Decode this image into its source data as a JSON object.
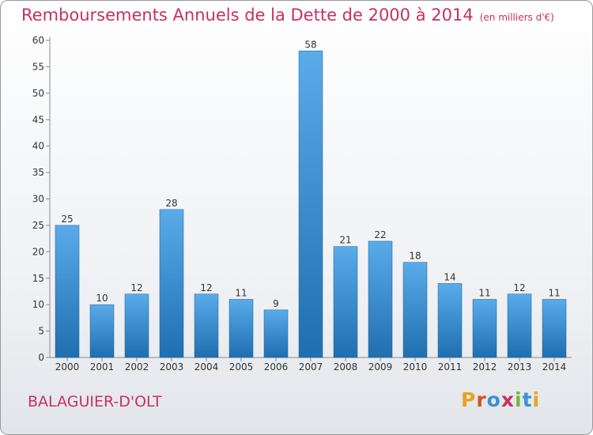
{
  "header": {
    "title": "Remboursements Annuels de la Dette de 2000 à 2014",
    "unit": "(en milliers d'€)"
  },
  "footer": {
    "town": "BALAGUIER-D'OLT",
    "logo_text": "Proxiti",
    "logo_colors": [
      "#e8a21f",
      "#d84f2b",
      "#3b8fd6",
      "#c8305f",
      "#79b534",
      "#3b8fd6",
      "#e8a21f"
    ]
  },
  "colors": {
    "accent": "#c8305f",
    "bar_light": "#5aabea",
    "bar_dark": "#1f6fb0"
  },
  "chart_data": {
    "type": "bar",
    "title": "Remboursements Annuels de la Dette de 2000 à 2014",
    "categories": [
      "2000",
      "2001",
      "2002",
      "2003",
      "2004",
      "2005",
      "2006",
      "2007",
      "2008",
      "2009",
      "2010",
      "2011",
      "2012",
      "2013",
      "2014"
    ],
    "values": [
      25,
      10,
      12,
      28,
      12,
      11,
      9,
      58,
      21,
      22,
      18,
      14,
      11,
      12,
      11
    ],
    "ylim": [
      0,
      60
    ],
    "yticks": [
      0,
      5,
      10,
      15,
      20,
      25,
      30,
      35,
      40,
      45,
      50,
      55,
      60
    ],
    "grid": false,
    "data_labels": true
  }
}
